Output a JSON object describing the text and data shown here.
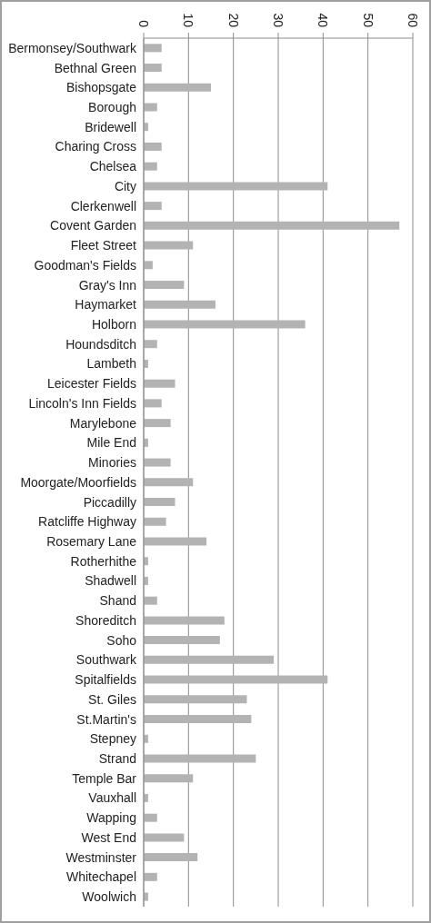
{
  "chart_data": {
    "type": "bar",
    "orientation": "horizontal",
    "categories": [
      "Bermonsey/Southwark",
      "Bethnal Green",
      "Bishopsgate",
      "Borough",
      "Bridewell",
      "Charing Cross",
      "Chelsea",
      "City",
      "Clerkenwell",
      "Covent Garden",
      "Fleet Street",
      "Goodman's Fields",
      "Gray's Inn",
      "Haymarket",
      "Holborn",
      "Houndsditch",
      "Lambeth",
      "Leicester Fields",
      "Lincoln's Inn Fields",
      "Marylebone",
      "Mile End",
      "Minories",
      "Moorgate/Moorfields",
      "Piccadilly",
      "Ratcliffe Highway",
      "Rosemary Lane",
      "Rotherhithe",
      "Shadwell",
      "Shand",
      "Shoreditch",
      "Soho",
      "Southwark",
      "Spitalfields",
      "St. Giles",
      "St.Martin's",
      "Stepney",
      "Strand",
      "Temple Bar",
      "Vauxhall",
      "Wapping",
      "West End",
      "Westminster",
      "Whitechapel",
      "Woolwich"
    ],
    "values": [
      4,
      4,
      15,
      3,
      1,
      4,
      3,
      41,
      4,
      57,
      11,
      2,
      9,
      16,
      36,
      3,
      1,
      7,
      4,
      6,
      1,
      6,
      11,
      7,
      5,
      14,
      1,
      1,
      3,
      18,
      17,
      29,
      41,
      23,
      24,
      1,
      25,
      11,
      1,
      3,
      9,
      12,
      3,
      1
    ],
    "color": "#b3b3b3",
    "xlim": [
      0,
      60
    ],
    "xticks": [
      0,
      10,
      20,
      30,
      40,
      50,
      60
    ],
    "grid": "x"
  }
}
